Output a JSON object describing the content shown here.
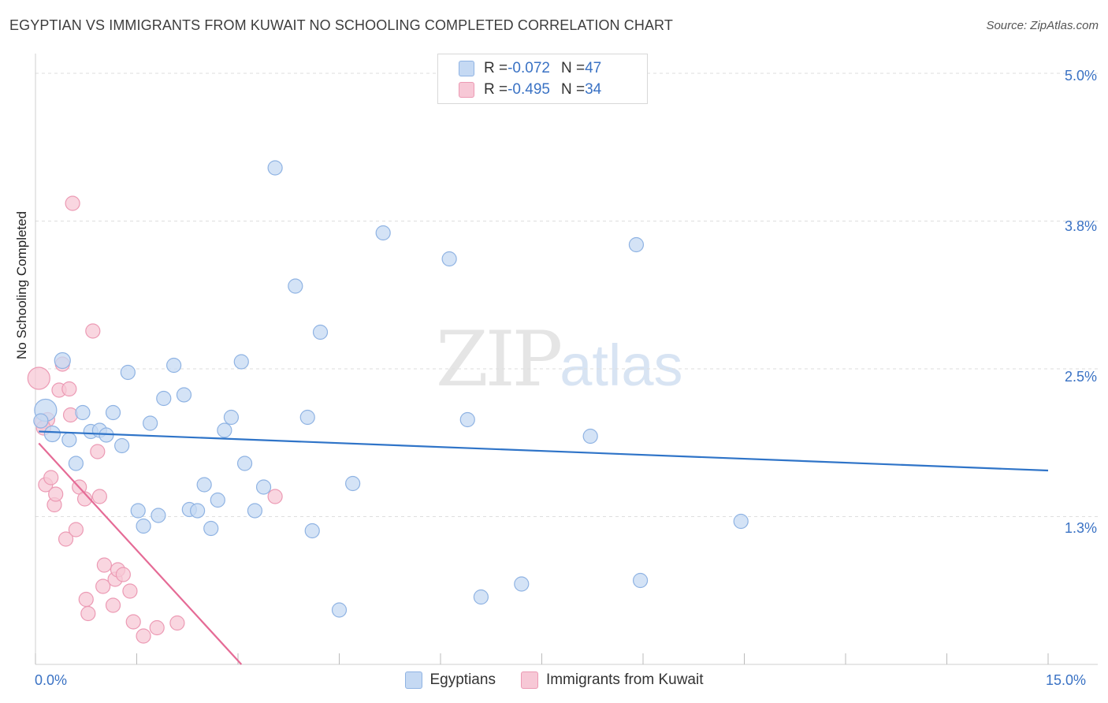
{
  "title": "EGYPTIAN VS IMMIGRANTS FROM KUWAIT NO SCHOOLING COMPLETED CORRELATION CHART",
  "source": "Source: ZipAtlas.com",
  "watermark": {
    "zip": "ZIP",
    "atlas": "atlas"
  },
  "legend_top": {
    "rows": [
      {
        "r_label": "R = ",
        "r_value": "-0.072",
        "n_label": "N = ",
        "n_value": "47"
      },
      {
        "r_label": "R = ",
        "r_value": "-0.495",
        "n_label": "N = ",
        "n_value": "34"
      }
    ]
  },
  "legend_bottom": [
    "Egyptians",
    "Immigrants from Kuwait"
  ],
  "colors": {
    "blue_fill": "#c5d9f3",
    "blue_stroke": "#8fb3e3",
    "blue_line": "#2f74c8",
    "pink_fill": "#f7c8d6",
    "pink_stroke": "#ec9ab4",
    "pink_line": "#e56b96",
    "grid": "#dedede",
    "axis_text": "#3a72c4"
  },
  "chart_data": {
    "type": "scatter",
    "title": "EGYPTIAN VS IMMIGRANTS FROM KUWAIT NO SCHOOLING COMPLETED CORRELATION CHART",
    "xlabel": "",
    "ylabel": "No Schooling Completed",
    "xlim": [
      0,
      15
    ],
    "ylim": [
      0,
      5.1
    ],
    "x_tick_labels": [
      "0.0%",
      "15.0%"
    ],
    "y_ticks": [
      1.25,
      2.5,
      3.75,
      5.0
    ],
    "y_tick_labels": [
      "1.3%",
      "2.5%",
      "3.8%",
      "5.0%"
    ],
    "grid": true,
    "series": [
      {
        "name": "Egyptians",
        "R": -0.072,
        "N": 47,
        "trend": {
          "x": [
            0.05,
            15.0
          ],
          "y": [
            1.97,
            1.64
          ]
        },
        "points": [
          {
            "x": 0.15,
            "y": 2.15,
            "s": 14
          },
          {
            "x": 0.25,
            "y": 1.95,
            "s": 10
          },
          {
            "x": 0.4,
            "y": 2.57,
            "s": 10
          },
          {
            "x": 0.5,
            "y": 1.9,
            "s": 9
          },
          {
            "x": 0.6,
            "y": 1.7,
            "s": 9
          },
          {
            "x": 0.7,
            "y": 2.13,
            "s": 9
          },
          {
            "x": 0.82,
            "y": 1.97,
            "s": 9
          },
          {
            "x": 0.95,
            "y": 1.98,
            "s": 9
          },
          {
            "x": 1.05,
            "y": 1.94,
            "s": 9
          },
          {
            "x": 1.15,
            "y": 2.13,
            "s": 9
          },
          {
            "x": 1.28,
            "y": 1.85,
            "s": 9
          },
          {
            "x": 1.37,
            "y": 2.47,
            "s": 9
          },
          {
            "x": 1.52,
            "y": 1.3,
            "s": 9
          },
          {
            "x": 1.6,
            "y": 1.17,
            "s": 9
          },
          {
            "x": 1.7,
            "y": 2.04,
            "s": 9
          },
          {
            "x": 1.82,
            "y": 1.26,
            "s": 9
          },
          {
            "x": 1.9,
            "y": 2.25,
            "s": 9
          },
          {
            "x": 2.05,
            "y": 2.53,
            "s": 9
          },
          {
            "x": 2.2,
            "y": 2.28,
            "s": 9
          },
          {
            "x": 2.28,
            "y": 1.31,
            "s": 9
          },
          {
            "x": 2.4,
            "y": 1.3,
            "s": 9
          },
          {
            "x": 2.5,
            "y": 1.52,
            "s": 9
          },
          {
            "x": 2.6,
            "y": 1.15,
            "s": 9
          },
          {
            "x": 2.7,
            "y": 1.39,
            "s": 9
          },
          {
            "x": 2.8,
            "y": 1.98,
            "s": 9
          },
          {
            "x": 2.9,
            "y": 2.09,
            "s": 9
          },
          {
            "x": 3.05,
            "y": 2.56,
            "s": 9
          },
          {
            "x": 3.1,
            "y": 1.7,
            "s": 9
          },
          {
            "x": 3.25,
            "y": 1.3,
            "s": 9
          },
          {
            "x": 3.38,
            "y": 1.5,
            "s": 9
          },
          {
            "x": 3.55,
            "y": 4.2,
            "s": 9
          },
          {
            "x": 3.85,
            "y": 3.2,
            "s": 9
          },
          {
            "x": 4.03,
            "y": 2.09,
            "s": 9
          },
          {
            "x": 4.1,
            "y": 1.13,
            "s": 9
          },
          {
            "x": 4.22,
            "y": 2.81,
            "s": 9
          },
          {
            "x": 4.5,
            "y": 0.46,
            "s": 9
          },
          {
            "x": 4.7,
            "y": 1.53,
            "s": 9
          },
          {
            "x": 5.15,
            "y": 3.65,
            "s": 9
          },
          {
            "x": 6.13,
            "y": 3.43,
            "s": 9
          },
          {
            "x": 6.4,
            "y": 2.07,
            "s": 9
          },
          {
            "x": 6.6,
            "y": 0.57,
            "s": 9
          },
          {
            "x": 7.2,
            "y": 0.68,
            "s": 9
          },
          {
            "x": 8.22,
            "y": 1.93,
            "s": 9
          },
          {
            "x": 8.9,
            "y": 3.55,
            "s": 9
          },
          {
            "x": 8.96,
            "y": 0.71,
            "s": 9
          },
          {
            "x": 10.45,
            "y": 1.21,
            "s": 9
          },
          {
            "x": 0.08,
            "y": 2.06,
            "s": 9
          }
        ]
      },
      {
        "name": "Immigrants from Kuwait",
        "R": -0.495,
        "N": 34,
        "trend": {
          "x": [
            0.05,
            3.05
          ],
          "y": [
            1.87,
            0.0
          ]
        },
        "points": [
          {
            "x": 0.05,
            "y": 2.42,
            "s": 14
          },
          {
            "x": 0.1,
            "y": 2.05,
            "s": 9
          },
          {
            "x": 0.18,
            "y": 2.07,
            "s": 9
          },
          {
            "x": 0.15,
            "y": 1.52,
            "s": 9
          },
          {
            "x": 0.23,
            "y": 1.58,
            "s": 9
          },
          {
            "x": 0.28,
            "y": 1.35,
            "s": 9
          },
          {
            "x": 0.3,
            "y": 1.44,
            "s": 9
          },
          {
            "x": 0.35,
            "y": 2.32,
            "s": 9
          },
          {
            "x": 0.4,
            "y": 2.54,
            "s": 9
          },
          {
            "x": 0.45,
            "y": 1.06,
            "s": 9
          },
          {
            "x": 0.5,
            "y": 2.33,
            "s": 9
          },
          {
            "x": 0.52,
            "y": 2.11,
            "s": 9
          },
          {
            "x": 0.55,
            "y": 3.9,
            "s": 9
          },
          {
            "x": 0.6,
            "y": 1.14,
            "s": 9
          },
          {
            "x": 0.65,
            "y": 1.5,
            "s": 9
          },
          {
            "x": 0.73,
            "y": 1.4,
            "s": 9
          },
          {
            "x": 0.75,
            "y": 0.55,
            "s": 9
          },
          {
            "x": 0.78,
            "y": 0.43,
            "s": 9
          },
          {
            "x": 0.85,
            "y": 2.82,
            "s": 9
          },
          {
            "x": 0.92,
            "y": 1.8,
            "s": 9
          },
          {
            "x": 0.95,
            "y": 1.42,
            "s": 9
          },
          {
            "x": 1.0,
            "y": 0.66,
            "s": 9
          },
          {
            "x": 1.02,
            "y": 0.84,
            "s": 9
          },
          {
            "x": 1.15,
            "y": 0.5,
            "s": 9
          },
          {
            "x": 1.18,
            "y": 0.72,
            "s": 9
          },
          {
            "x": 1.22,
            "y": 0.8,
            "s": 9
          },
          {
            "x": 1.3,
            "y": 0.76,
            "s": 9
          },
          {
            "x": 1.4,
            "y": 0.62,
            "s": 9
          },
          {
            "x": 1.45,
            "y": 0.36,
            "s": 9
          },
          {
            "x": 1.6,
            "y": 0.24,
            "s": 9
          },
          {
            "x": 1.8,
            "y": 0.31,
            "s": 9
          },
          {
            "x": 2.1,
            "y": 0.35,
            "s": 9
          },
          {
            "x": 3.55,
            "y": 1.42,
            "s": 9
          },
          {
            "x": 0.12,
            "y": 2.0,
            "s": 9
          }
        ]
      }
    ]
  }
}
